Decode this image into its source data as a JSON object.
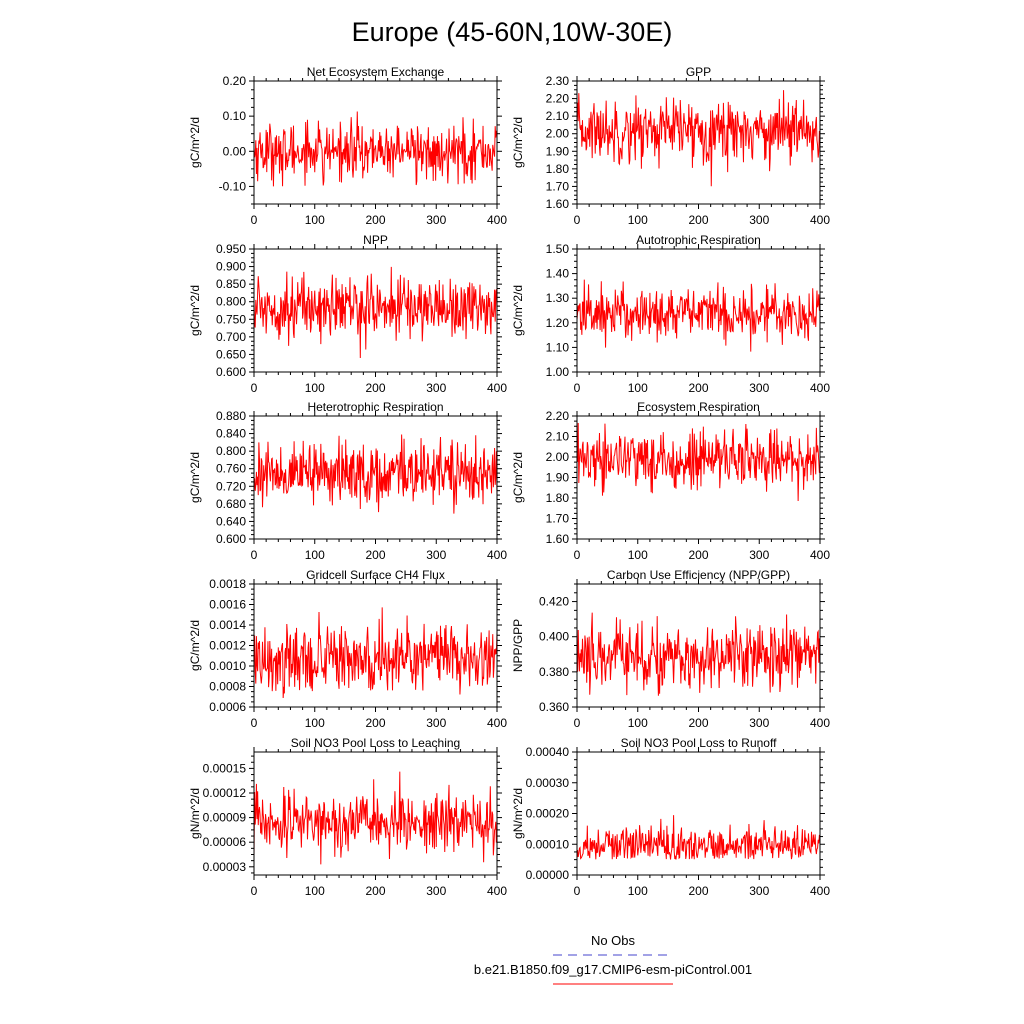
{
  "figure": {
    "title": "Europe (45-60N,10W-30E)",
    "legend": [
      {
        "label": "No Obs",
        "color": "#4444cc",
        "style": "dashed"
      },
      {
        "label": "b.e21.B1850.f09_g17.CMIP6-esm-piControl.001",
        "color": "#ff0000",
        "style": "solid"
      }
    ]
  },
  "chart_data": [
    {
      "type": "line",
      "title": "Net Ecosystem Exchange",
      "xlabel": "",
      "ylabel": "gC/m^2/d",
      "xlim": [
        0,
        400
      ],
      "ylim": [
        -0.15,
        0.2
      ],
      "xticks": [
        "0",
        "100",
        "200",
        "300",
        "400"
      ],
      "yticks": [
        {
          "v": -0.1,
          "label": "-0.10"
        },
        {
          "v": 0.0,
          "label": "0.00"
        },
        {
          "v": 0.1,
          "label": "0.10"
        },
        {
          "v": 0.2,
          "label": "0.20"
        }
      ],
      "series": [
        {
          "color": "#ff0000",
          "n": 400,
          "mean": 0.0,
          "sd": 0.04,
          "min": -0.1,
          "max": 0.16
        }
      ]
    },
    {
      "type": "line",
      "title": "GPP",
      "xlabel": "",
      "ylabel": "gC/m^2/d",
      "xlim": [
        0,
        400
      ],
      "ylim": [
        1.6,
        2.3
      ],
      "xticks": [
        "0",
        "100",
        "200",
        "300",
        "400"
      ],
      "yticks": [
        {
          "v": 1.6,
          "label": "1.60"
        },
        {
          "v": 1.7,
          "label": "1.70"
        },
        {
          "v": 1.8,
          "label": "1.80"
        },
        {
          "v": 1.9,
          "label": "1.90"
        },
        {
          "v": 2.0,
          "label": "2.00"
        },
        {
          "v": 2.1,
          "label": "2.10"
        },
        {
          "v": 2.2,
          "label": "2.20"
        },
        {
          "v": 2.3,
          "label": "2.30"
        }
      ],
      "series": [
        {
          "color": "#ff0000",
          "n": 400,
          "mean": 2.02,
          "sd": 0.09,
          "min": 1.67,
          "max": 2.25
        }
      ]
    },
    {
      "type": "line",
      "title": "NPP",
      "xlabel": "",
      "ylabel": "gC/m^2/d",
      "xlim": [
        0,
        400
      ],
      "ylim": [
        0.6,
        0.95
      ],
      "xticks": [
        "0",
        "100",
        "200",
        "300",
        "400"
      ],
      "yticks": [
        {
          "v": 0.6,
          "label": "0.600"
        },
        {
          "v": 0.65,
          "label": "0.650"
        },
        {
          "v": 0.7,
          "label": "0.700"
        },
        {
          "v": 0.75,
          "label": "0.750"
        },
        {
          "v": 0.8,
          "label": "0.800"
        },
        {
          "v": 0.85,
          "label": "0.850"
        },
        {
          "v": 0.9,
          "label": "0.900"
        },
        {
          "v": 0.95,
          "label": "0.950"
        }
      ],
      "series": [
        {
          "color": "#ff0000",
          "n": 400,
          "mean": 0.785,
          "sd": 0.045,
          "min": 0.63,
          "max": 0.91
        }
      ]
    },
    {
      "type": "line",
      "title": "Autotrophic Respiration",
      "xlabel": "",
      "ylabel": "gC/m^2/d",
      "xlim": [
        0,
        400
      ],
      "ylim": [
        1.0,
        1.5
      ],
      "xticks": [
        "0",
        "100",
        "200",
        "300",
        "400"
      ],
      "yticks": [
        {
          "v": 1.0,
          "label": "1.00"
        },
        {
          "v": 1.1,
          "label": "1.10"
        },
        {
          "v": 1.2,
          "label": "1.20"
        },
        {
          "v": 1.3,
          "label": "1.30"
        },
        {
          "v": 1.4,
          "label": "1.40"
        },
        {
          "v": 1.5,
          "label": "1.50"
        }
      ],
      "series": [
        {
          "color": "#ff0000",
          "n": 400,
          "mean": 1.24,
          "sd": 0.055,
          "min": 1.03,
          "max": 1.4
        }
      ]
    },
    {
      "type": "line",
      "title": "Heterotrophic Respiration",
      "xlabel": "",
      "ylabel": "gC/m^2/d",
      "xlim": [
        0,
        400
      ],
      "ylim": [
        0.6,
        0.88
      ],
      "xticks": [
        "0",
        "100",
        "200",
        "300",
        "400"
      ],
      "yticks": [
        {
          "v": 0.6,
          "label": "0.600"
        },
        {
          "v": 0.64,
          "label": "0.640"
        },
        {
          "v": 0.68,
          "label": "0.680"
        },
        {
          "v": 0.72,
          "label": "0.720"
        },
        {
          "v": 0.76,
          "label": "0.760"
        },
        {
          "v": 0.8,
          "label": "0.800"
        },
        {
          "v": 0.84,
          "label": "0.840"
        },
        {
          "v": 0.88,
          "label": "0.880"
        }
      ],
      "series": [
        {
          "color": "#ff0000",
          "n": 400,
          "mean": 0.75,
          "sd": 0.035,
          "min": 0.63,
          "max": 0.84
        }
      ]
    },
    {
      "type": "line",
      "title": "Ecosystem Respiration",
      "xlabel": "",
      "ylabel": "gC/m^2/d",
      "xlim": [
        0,
        400
      ],
      "ylim": [
        1.6,
        2.2
      ],
      "xticks": [
        "0",
        "100",
        "200",
        "300",
        "400"
      ],
      "yticks": [
        {
          "v": 1.6,
          "label": "1.60"
        },
        {
          "v": 1.7,
          "label": "1.70"
        },
        {
          "v": 1.8,
          "label": "1.80"
        },
        {
          "v": 1.9,
          "label": "1.90"
        },
        {
          "v": 2.0,
          "label": "2.00"
        },
        {
          "v": 2.1,
          "label": "2.10"
        },
        {
          "v": 2.2,
          "label": "2.20"
        }
      ],
      "series": [
        {
          "color": "#ff0000",
          "n": 400,
          "mean": 1.99,
          "sd": 0.075,
          "min": 1.69,
          "max": 2.18
        }
      ]
    },
    {
      "type": "line",
      "title": "Gridcell Surface CH4 Flux",
      "xlabel": "",
      "ylabel": "gC/m^2/d",
      "xlim": [
        0,
        400
      ],
      "ylim": [
        0.0006,
        0.0018
      ],
      "xticks": [
        "0",
        "100",
        "200",
        "300",
        "400"
      ],
      "yticks": [
        {
          "v": 0.0006,
          "label": "0.0006"
        },
        {
          "v": 0.0008,
          "label": "0.0008"
        },
        {
          "v": 0.001,
          "label": "0.0010"
        },
        {
          "v": 0.0012,
          "label": "0.0012"
        },
        {
          "v": 0.0014,
          "label": "0.0014"
        },
        {
          "v": 0.0016,
          "label": "0.0016"
        },
        {
          "v": 0.0018,
          "label": "0.0018"
        }
      ],
      "series": [
        {
          "color": "#ff0000",
          "n": 400,
          "mean": 0.00108,
          "sd": 0.00017,
          "min": 0.00065,
          "max": 0.00175
        }
      ]
    },
    {
      "type": "line",
      "title": "Carbon Use Efficiency (NPP/GPP)",
      "xlabel": "",
      "ylabel": "NPP/GPP",
      "xlim": [
        0,
        400
      ],
      "ylim": [
        0.36,
        0.43
      ],
      "xticks": [
        "0",
        "100",
        "200",
        "300",
        "400"
      ],
      "yticks": [
        {
          "v": 0.36,
          "label": "0.360"
        },
        {
          "v": 0.38,
          "label": "0.380"
        },
        {
          "v": 0.4,
          "label": "0.400"
        },
        {
          "v": 0.42,
          "label": "0.420"
        }
      ],
      "series": [
        {
          "color": "#ff0000",
          "n": 400,
          "mean": 0.389,
          "sd": 0.01,
          "min": 0.364,
          "max": 0.427
        }
      ]
    },
    {
      "type": "line",
      "title": "Soil NO3 Pool Loss to Leaching",
      "xlabel": "",
      "ylabel": "gN/m^2/d",
      "xlim": [
        0,
        400
      ],
      "ylim": [
        2e-05,
        0.00017
      ],
      "xticks": [
        "0",
        "100",
        "200",
        "300",
        "400"
      ],
      "yticks": [
        {
          "v": 3e-05,
          "label": "0.00003"
        },
        {
          "v": 6e-05,
          "label": "0.00006"
        },
        {
          "v": 9e-05,
          "label": "0.00009"
        },
        {
          "v": 0.00012,
          "label": "0.00012"
        },
        {
          "v": 0.00015,
          "label": "0.00015"
        }
      ],
      "series": [
        {
          "color": "#ff0000",
          "n": 400,
          "mean": 8.5e-05,
          "sd": 1.8e-05,
          "min": 3.3e-05,
          "max": 0.000149
        }
      ]
    },
    {
      "type": "line",
      "title": "Soil NO3 Pool Loss to Runoff",
      "xlabel": "",
      "ylabel": "gN/m^2/d",
      "xlim": [
        0,
        400
      ],
      "ylim": [
        0.0,
        0.0004
      ],
      "xticks": [
        "0",
        "100",
        "200",
        "300",
        "400"
      ],
      "yticks": [
        {
          "v": 0.0,
          "label": "0.00000"
        },
        {
          "v": 0.0001,
          "label": "0.00010"
        },
        {
          "v": 0.0002,
          "label": "0.00020"
        },
        {
          "v": 0.0003,
          "label": "0.00030"
        },
        {
          "v": 0.0004,
          "label": "0.00040"
        }
      ],
      "series": [
        {
          "color": "#ff0000",
          "n": 400,
          "mean": 0.0001,
          "sd": 3e-05,
          "min": 5e-05,
          "max": 0.00035
        }
      ]
    }
  ]
}
